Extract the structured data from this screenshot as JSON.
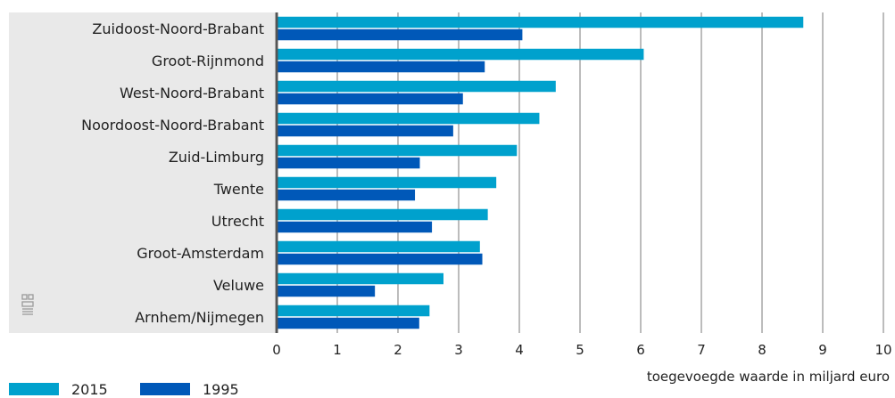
{
  "chart_data": {
    "type": "bar",
    "orientation": "horizontal",
    "categories": [
      "Zuidoost-Noord-Brabant",
      "Groot-Rijnmond",
      "West-Noord-Brabant",
      "Noordoost-Noord-Brabant",
      "Zuid-Limburg",
      "Twente",
      "Utrecht",
      "Groot-Amsterdam",
      "Veluwe",
      "Arnhem/Nijmegen"
    ],
    "series": [
      {
        "name": "2015",
        "color": "#00a1cd",
        "values": [
          8.68,
          6.05,
          4.6,
          4.33,
          3.96,
          3.62,
          3.48,
          3.35,
          2.75,
          2.52
        ]
      },
      {
        "name": "1995",
        "color": "#0058b8",
        "values": [
          4.05,
          3.43,
          3.07,
          2.91,
          2.36,
          2.28,
          2.56,
          3.39,
          1.62,
          2.35
        ]
      }
    ],
    "xticks": [
      "0",
      "1",
      "2",
      "3",
      "4",
      "5",
      "6",
      "7",
      "8",
      "9",
      "10"
    ],
    "xlim": [
      0,
      10
    ],
    "xlabel": "toegevoegde waarde in miljard euro",
    "grid": true,
    "legend_position": "bottom-left"
  },
  "logo_icon": "cbs-logo-icon"
}
